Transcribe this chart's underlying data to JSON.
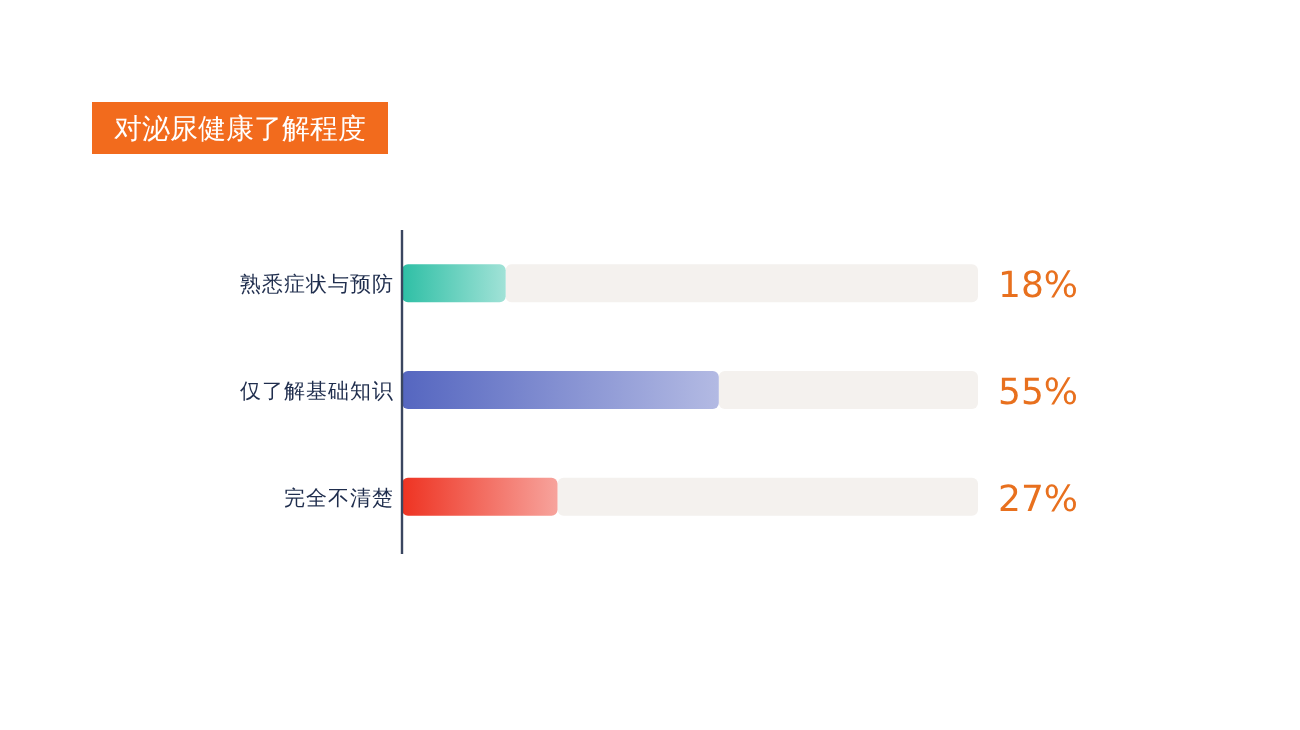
{
  "chart_data": {
    "type": "bar",
    "orientation": "horizontal",
    "title": "对泌尿健康了解程度",
    "categories": [
      "熟悉症状与预防",
      "仅了解基础知识",
      "完全不清楚"
    ],
    "values": [
      18,
      55,
      27
    ],
    "colors": [
      "#2ebfa5",
      "#5566c0",
      "#ee3322"
    ],
    "xlim": [
      0,
      100
    ],
    "tick_labels": "y",
    "data_labels": true,
    "value_labels": [
      "18%",
      "55%",
      "27%"
    ]
  }
}
